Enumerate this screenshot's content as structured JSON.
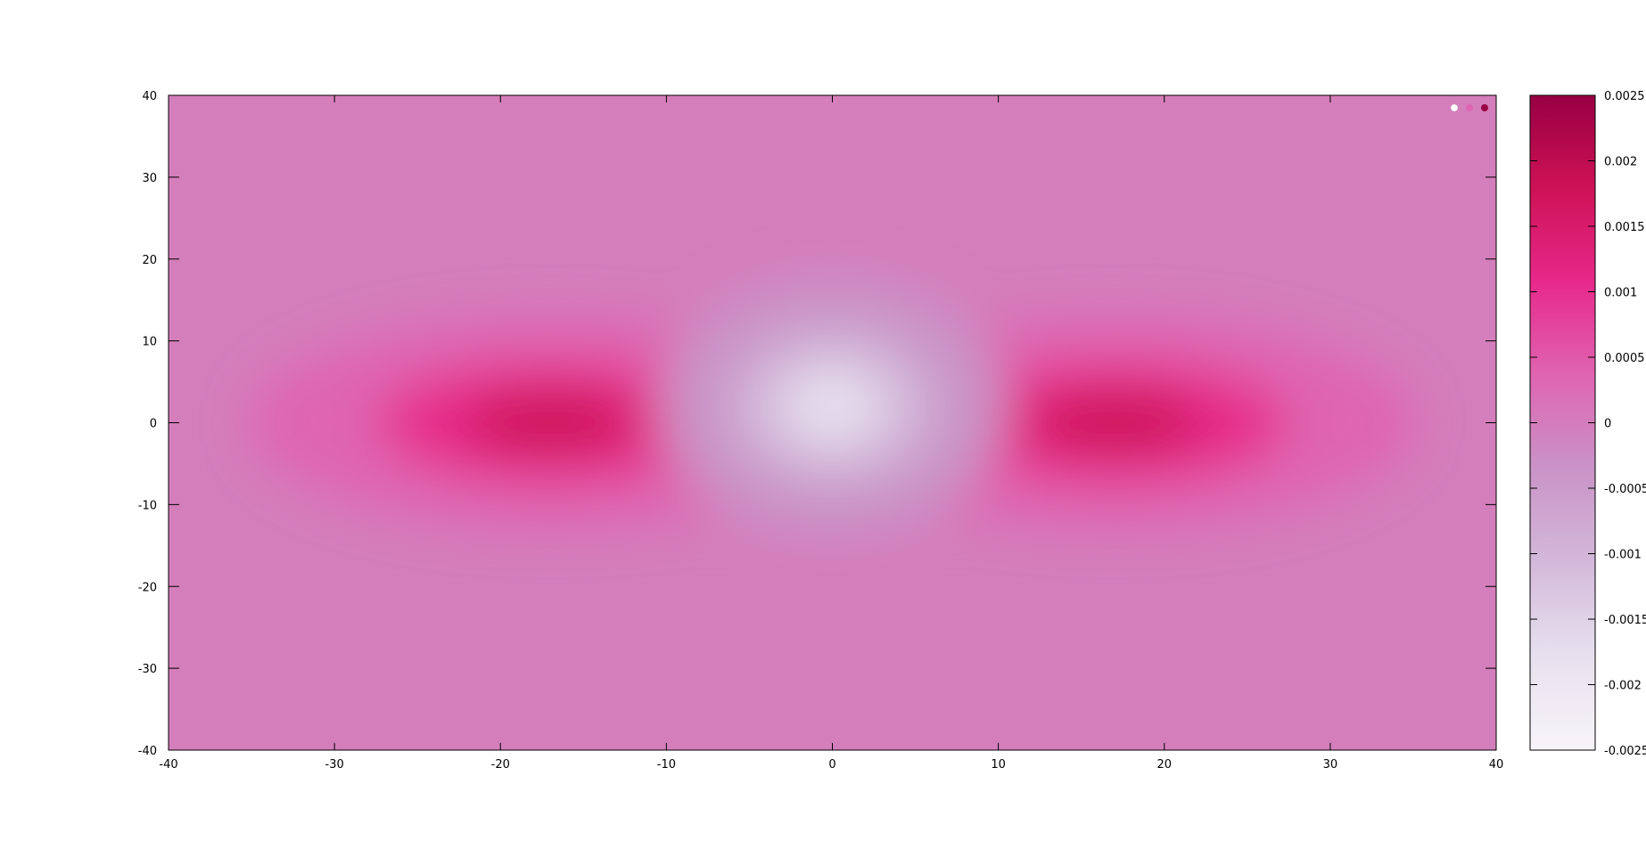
{
  "chart_data": {
    "type": "heatmap",
    "title": "",
    "xlabel": "",
    "ylabel": "",
    "xlim": [
      -40,
      40
    ],
    "ylim": [
      -40,
      40
    ],
    "x_ticks": [
      "-40",
      "-30",
      "-20",
      "-10",
      "0",
      "10",
      "20",
      "30",
      "40"
    ],
    "y_ticks": [
      "40",
      "30",
      "20",
      "10",
      "0",
      "-10",
      "-20",
      "-30",
      "-40"
    ],
    "colorbar": {
      "range": [
        -0.0025,
        0.0025
      ],
      "ticks": [
        "0.0025",
        "0.002",
        "0.0015",
        "0.001",
        "0.0005",
        "0",
        "-0.0005",
        "-0.001",
        "-0.0015",
        "-0.002",
        "-0.0025"
      ],
      "colors": [
        "#f7f4f9",
        "#e7e1ef",
        "#d4b9da",
        "#c994c7",
        "#df65b0",
        "#e7298a",
        "#ce1256",
        "#980043"
      ]
    },
    "field_features": [
      {
        "kind": "max",
        "x": -17,
        "y": 0,
        "value": 0.0022
      },
      {
        "kind": "max",
        "x": 17,
        "y": 0,
        "value": 0.0022
      },
      {
        "kind": "min",
        "x": 0,
        "y": 2,
        "value": -0.0021
      }
    ],
    "grid": false,
    "legend": "top-right",
    "legend_markers": [
      "#ffffff",
      "#df65b0",
      "#980043"
    ]
  }
}
